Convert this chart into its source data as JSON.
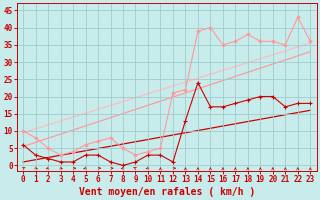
{
  "xlabel": "Vent moyen/en rafales ( km/h )",
  "bg_color": "#c8ecec",
  "grid_color": "#a0cccc",
  "x_ticks": [
    0,
    1,
    2,
    3,
    4,
    5,
    6,
    7,
    8,
    9,
    10,
    11,
    12,
    13,
    14,
    15,
    16,
    17,
    18,
    19,
    20,
    21,
    22,
    23
  ],
  "y_ticks": [
    0,
    5,
    10,
    15,
    20,
    25,
    30,
    35,
    40,
    45
  ],
  "ylim": [
    -1.5,
    47
  ],
  "xlim": [
    -0.5,
    23.5
  ],
  "line_dark_x": [
    0,
    1,
    2,
    3,
    4,
    5,
    6,
    7,
    8,
    9,
    10,
    11,
    12,
    13,
    14,
    15,
    16,
    17,
    18,
    19,
    20,
    21,
    22,
    23
  ],
  "line_dark_y": [
    6,
    3,
    2,
    1,
    1,
    3,
    3,
    1,
    0,
    1,
    3,
    3,
    1,
    13,
    24,
    17,
    17,
    18,
    19,
    20,
    20,
    17,
    18,
    18
  ],
  "line_dark_color": "#cc0000",
  "line_light_x": [
    0,
    1,
    2,
    3,
    4,
    5,
    6,
    7,
    8,
    9,
    10,
    11,
    12,
    13,
    14,
    15,
    16,
    17,
    18,
    19,
    20,
    21,
    22,
    23
  ],
  "line_light_y": [
    10,
    8,
    5,
    3,
    4,
    6,
    7,
    8,
    5,
    3,
    4,
    5,
    21,
    22,
    39,
    40,
    35,
    36,
    38,
    36,
    36,
    35,
    43,
    36
  ],
  "line_light_color": "#ff9999",
  "trend1_x": [
    0,
    23
  ],
  "trend1_y": [
    1.0,
    16.0
  ],
  "trend1_color": "#cc0000",
  "trend2_x": [
    0,
    23
  ],
  "trend2_y": [
    5.5,
    33.0
  ],
  "trend2_color": "#ff9999",
  "trend3_x": [
    0,
    23
  ],
  "trend3_y": [
    9.5,
    35.5
  ],
  "trend3_color": "#ffbbbb",
  "font_color": "#cc0000",
  "tick_fontsize": 5.5,
  "label_fontsize": 7.0,
  "arrow_angles": [
    135,
    45,
    315,
    45,
    90,
    315,
    90,
    90,
    315,
    225,
    315,
    180,
    90,
    180,
    180,
    180,
    180,
    180,
    180,
    180,
    180,
    180,
    180,
    180
  ]
}
